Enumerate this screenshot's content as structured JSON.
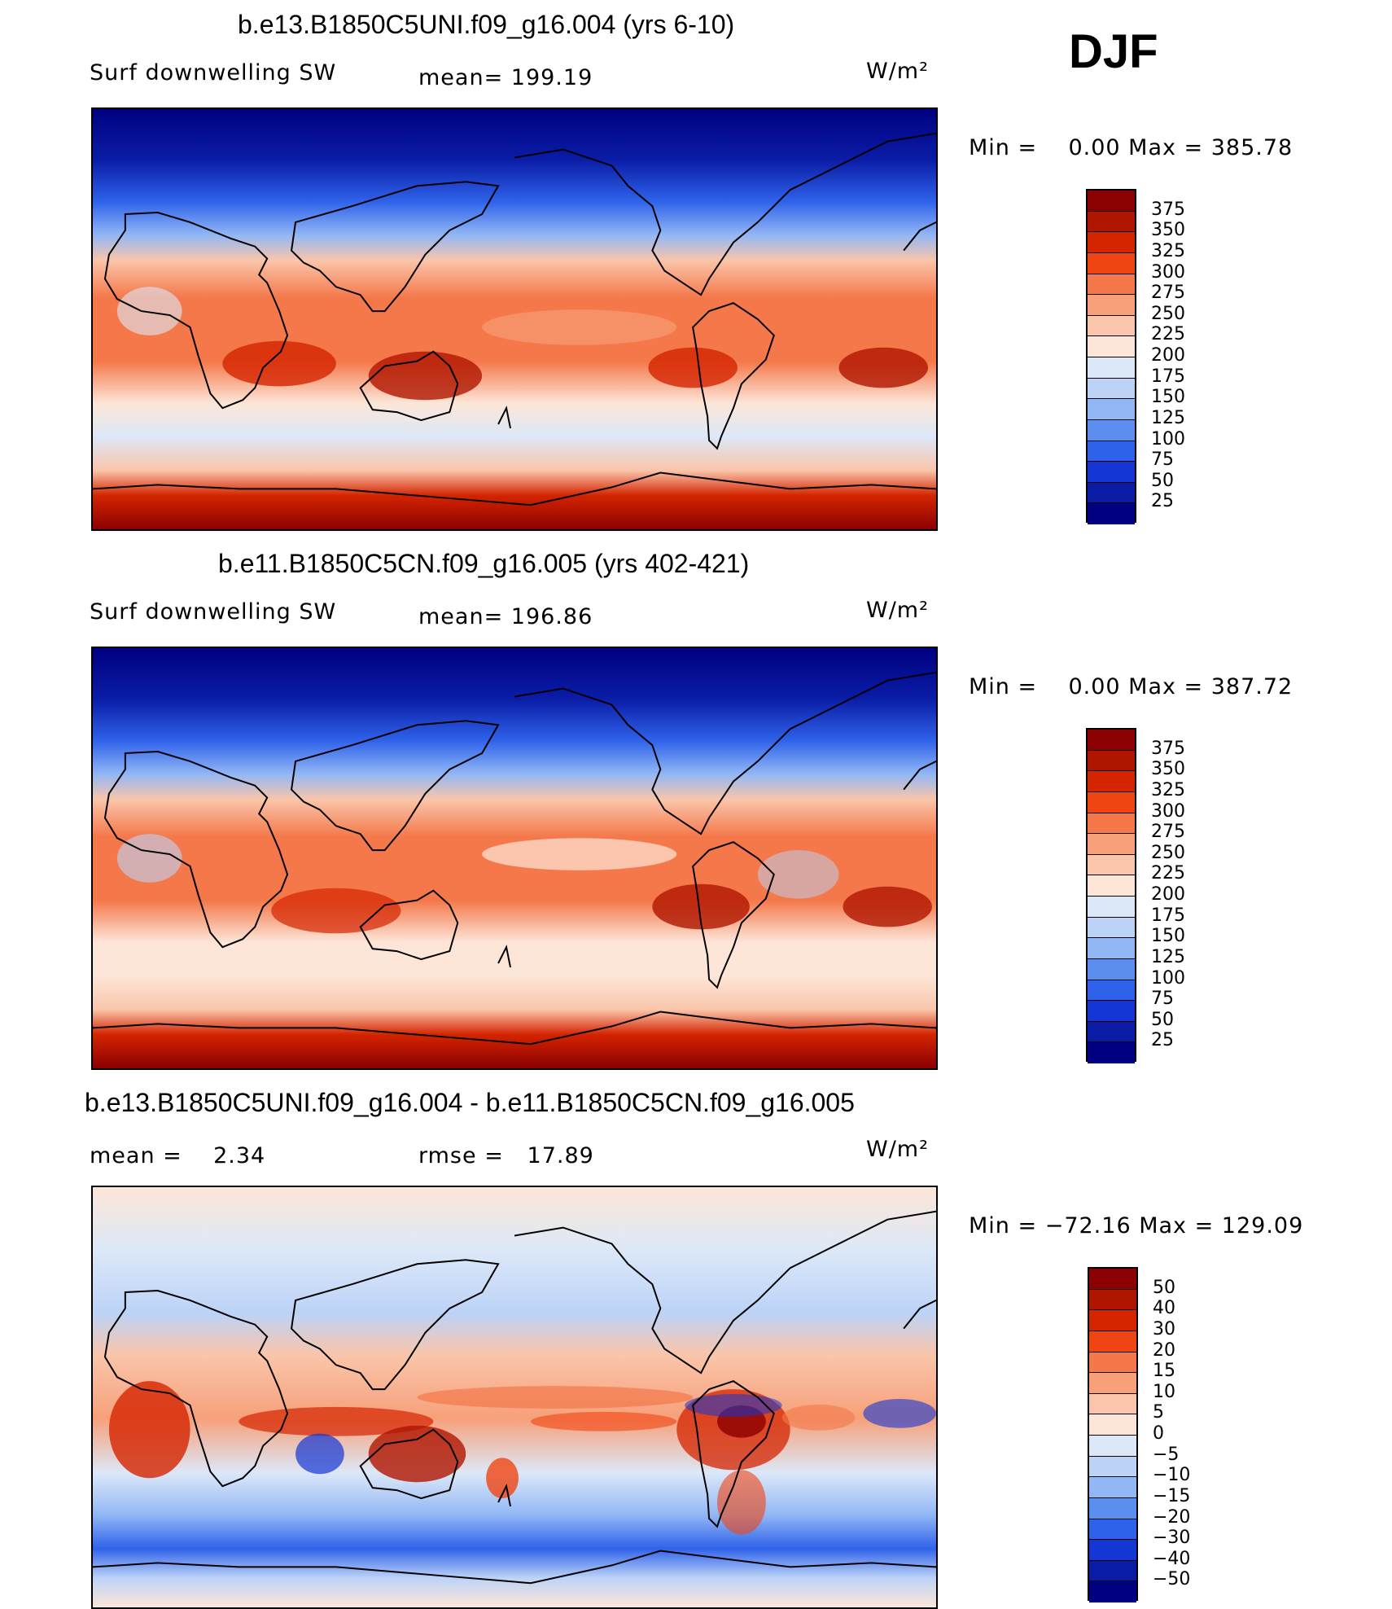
{
  "figure_label": "DJF",
  "panels": [
    {
      "title": "b.e13.B1850C5UNI.f09_g16.004 (yrs 6-10)",
      "variable": "Surf downwelling SW",
      "stat_text": "mean= 199.19",
      "units": "W/m²",
      "range_text": "Min =    0.00 Max = 385.78",
      "legend_levels": [
        "375",
        "350",
        "325",
        "300",
        "275",
        "250",
        "225",
        "200",
        "175",
        "150",
        "125",
        "100",
        "75",
        "50",
        "25"
      ],
      "legend_colors": [
        "#8b0000",
        "#b01500",
        "#d42400",
        "#f04512",
        "#f4784a",
        "#f7a07a",
        "#fac5aa",
        "#fde6d8",
        "#dce8f8",
        "#bcd3f7",
        "#92b7f5",
        "#5c8ef0",
        "#2f62ea",
        "#1436d4",
        "#0a1ca6",
        "#000080"
      ],
      "map_image": "global SW field"
    },
    {
      "title": "b.e11.B1850C5CN.f09_g16.005 (yrs 402-421)",
      "variable": "Surf downwelling SW",
      "stat_text": "mean= 196.86",
      "units": "W/m²",
      "range_text": "Min =    0.00 Max = 387.72",
      "legend_levels": [
        "375",
        "350",
        "325",
        "300",
        "275",
        "250",
        "225",
        "200",
        "175",
        "150",
        "125",
        "100",
        "75",
        "50",
        "25"
      ],
      "legend_colors": [
        "#8b0000",
        "#b01500",
        "#d42400",
        "#f04512",
        "#f4784a",
        "#f7a07a",
        "#fac5aa",
        "#fde6d8",
        "#dce8f8",
        "#bcd3f7",
        "#92b7f5",
        "#5c8ef0",
        "#2f62ea",
        "#1436d4",
        "#0a1ca6",
        "#000080"
      ],
      "map_image": "global SW field"
    },
    {
      "title": "b.e13.B1850C5UNI.f09_g16.004 - b.e11.B1850C5CN.f09_g16.005",
      "mean_text": "mean =    2.34",
      "rmse_text": "rmse =   17.89",
      "units": "W/m²",
      "range_text": "Min = −72.16 Max = 129.09",
      "legend_levels": [
        "50",
        "40",
        "30",
        "20",
        "15",
        "10",
        "5",
        "0",
        "−5",
        "−10",
        "−15",
        "−20",
        "−30",
        "−40",
        "−50"
      ],
      "legend_colors": [
        "#8b0000",
        "#b01500",
        "#d42400",
        "#f04512",
        "#f4784a",
        "#f7a07a",
        "#fac5aa",
        "#fde6d8",
        "#dce8f8",
        "#bcd3f7",
        "#92b7f5",
        "#5c8ef0",
        "#2f62ea",
        "#1436d4",
        "#0a1ca6",
        "#000080"
      ],
      "map_image": "difference field"
    }
  ]
}
